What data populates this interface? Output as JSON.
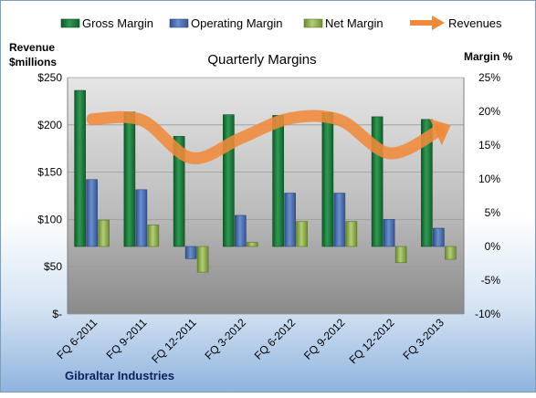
{
  "chart_data": {
    "type": "bar",
    "title": "Quarterly Margins",
    "ylabel_left": [
      "Revenue",
      "$millions"
    ],
    "ylabel_right": "Margin %",
    "footer": "Gibraltar Industries",
    "categories": [
      "FQ 6-2011",
      "FQ 9-2011",
      "FQ 12-2011",
      "FQ 3-2012",
      "FQ 6-2012",
      "FQ 9-2012",
      "FQ 12-2012",
      "FQ 3-2013"
    ],
    "left_axis": {
      "ylim": [
        0,
        250
      ],
      "ticks": [
        0,
        50,
        100,
        150,
        200,
        250
      ],
      "tick_labels": [
        "$-",
        "$50",
        "$100",
        "$150",
        "$200",
        "$250"
      ]
    },
    "right_axis": {
      "ylim": [
        -10,
        25
      ],
      "ticks": [
        -10,
        -5,
        0,
        5,
        10,
        15,
        20,
        25
      ],
      "tick_labels": [
        "-10%",
        "-5%",
        "0%",
        "5%",
        "10%",
        "15%",
        "20%",
        "25%"
      ]
    },
    "series": [
      {
        "name": "Gross Margin",
        "type": "bar",
        "axis": "right",
        "color": "#1e7a3c",
        "values": [
          23.1,
          19.9,
          16.3,
          19.5,
          19.4,
          19.8,
          19.2,
          18.8
        ]
      },
      {
        "name": "Operating Margin",
        "type": "bar",
        "axis": "right",
        "color": "#4a6fb0",
        "values": [
          9.9,
          8.4,
          -1.8,
          4.6,
          7.9,
          7.9,
          4.0,
          2.7
        ]
      },
      {
        "name": "Net Margin",
        "type": "bar",
        "axis": "right",
        "color": "#8fb24d",
        "values": [
          3.9,
          3.2,
          -3.8,
          0.6,
          3.7,
          3.7,
          -2.4,
          -1.9
        ]
      },
      {
        "name": "Revenues",
        "type": "line",
        "axis": "left",
        "color": "#f08a3a",
        "values": [
          206,
          205,
          165,
          186,
          207,
          205,
          170,
          194
        ]
      }
    ],
    "legend_position": "top",
    "grid": true
  }
}
